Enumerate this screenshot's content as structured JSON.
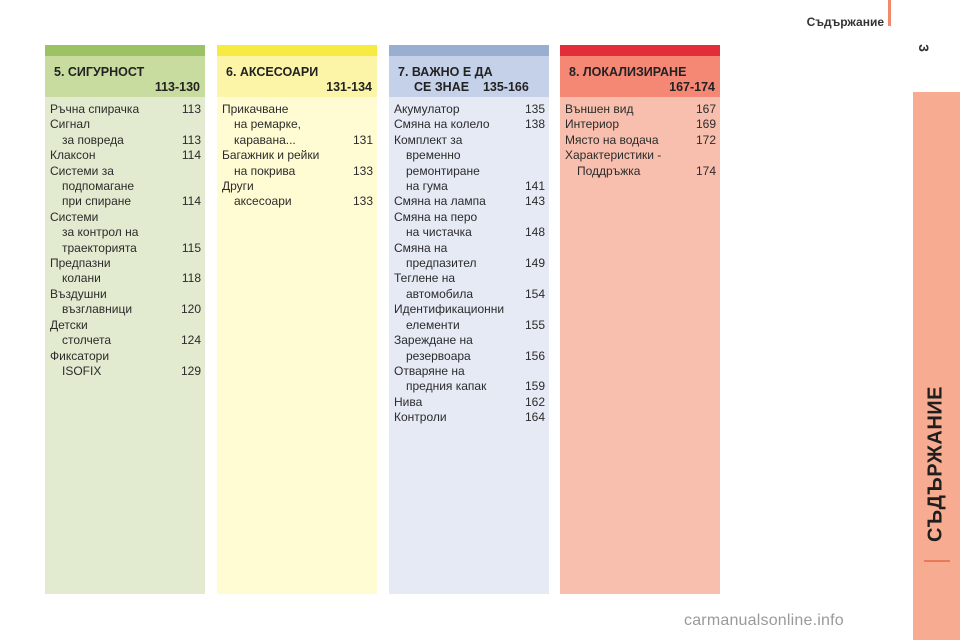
{
  "header": {
    "title": "Съдържание",
    "page_number": "3"
  },
  "side_tab": {
    "label": "СЪДЪРЖАНИЕ"
  },
  "colors": {
    "green": "#9cc266",
    "yellow": "#f7ea40",
    "blue": "#9aaed2",
    "red": "#e22e3a",
    "side_tab": "#f7ab90"
  },
  "columns": [
    {
      "title_line1": "5. СИГУРНОСТ",
      "title_line2": "113-130",
      "entries": [
        {
          "lines": [
            "Ръчна спирачка"
          ],
          "page": "113"
        },
        {
          "lines": [
            "Сигнал",
            "за повреда"
          ],
          "page": "113"
        },
        {
          "lines": [
            "Клаксон"
          ],
          "page": "114"
        },
        {
          "lines": [
            "Системи за",
            "подпомагане",
            "при спиране"
          ],
          "page": "114"
        },
        {
          "lines": [
            "Системи",
            "за контрол на",
            "траекторията"
          ],
          "page": "115"
        },
        {
          "lines": [
            "Предпазни",
            "колани"
          ],
          "page": "118"
        },
        {
          "lines": [
            "Въздушни",
            "възглавници"
          ],
          "page": "120"
        },
        {
          "lines": [
            "Детски",
            "столчета"
          ],
          "page": "124"
        },
        {
          "lines": [
            "Фиксатори",
            "ISOFIX"
          ],
          "page": "129"
        }
      ]
    },
    {
      "title_line1": "6. АКСЕСОАРИ",
      "title_line2": "131-134",
      "entries": [
        {
          "lines": [
            "Прикачване",
            "на ремарке,",
            "каравана..."
          ],
          "page": "131"
        },
        {
          "lines": [
            "Багажник и рейки",
            "на покрива"
          ],
          "page": "133"
        },
        {
          "lines": [
            "Други",
            "аксесоари"
          ],
          "page": "133"
        }
      ]
    },
    {
      "title_line1": "7. ВАЖНО Е ДА",
      "title_line2": "СЕ ЗНАЕ    135-166",
      "entries": [
        {
          "lines": [
            "Акумулатор"
          ],
          "page": "135"
        },
        {
          "lines": [
            "Смяна на колело"
          ],
          "page": "138"
        },
        {
          "lines": [
            "Комплект за",
            "временно",
            "ремонтиране",
            "на гума"
          ],
          "page": "141"
        },
        {
          "lines": [
            "Смяна на лампа"
          ],
          "page": "143"
        },
        {
          "lines": [
            "Смяна на перо",
            "на чистачка"
          ],
          "page": "148"
        },
        {
          "lines": [
            "Смяна на",
            "предпазител"
          ],
          "page": "149"
        },
        {
          "lines": [
            "Теглене на",
            "автомобила"
          ],
          "page": "154"
        },
        {
          "lines": [
            "Идентификационни",
            "елементи"
          ],
          "page": "155"
        },
        {
          "lines": [
            "Зареждане на",
            "резервоара"
          ],
          "page": "156"
        },
        {
          "lines": [
            "Отваряне на",
            "предния капак"
          ],
          "page": "159"
        },
        {
          "lines": [
            "Нива"
          ],
          "page": "162"
        },
        {
          "lines": [
            "Контроли"
          ],
          "page": "164"
        }
      ]
    },
    {
      "title_line1": "8. ЛОКАЛИЗИРАНЕ",
      "title_line2": "167-174",
      "entries": [
        {
          "lines": [
            "Външен вид"
          ],
          "page": "167"
        },
        {
          "lines": [
            "Интериор"
          ],
          "page": "169"
        },
        {
          "lines": [
            "Място на водача"
          ],
          "page": "172"
        },
        {
          "lines": [
            "Характеристики -",
            "Поддръжка"
          ],
          "page": "174"
        }
      ]
    }
  ],
  "watermark": "carmanualsonline.info"
}
